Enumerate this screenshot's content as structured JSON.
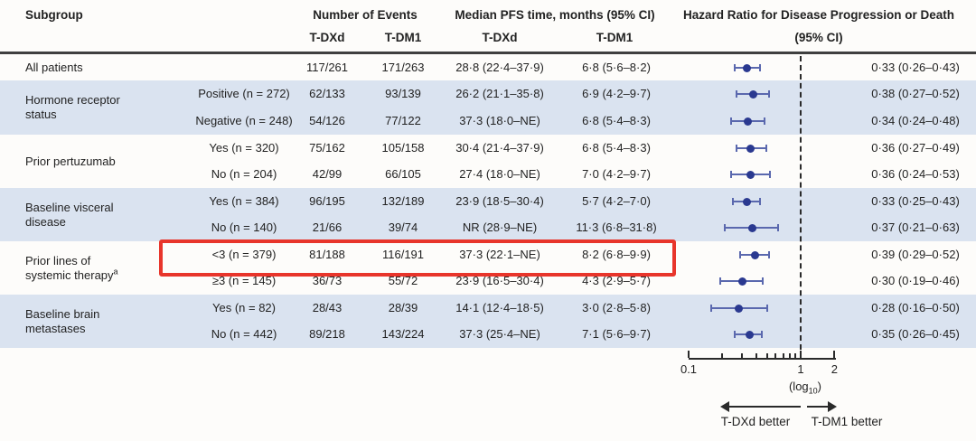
{
  "header": {
    "subgroup": "Subgroup",
    "events": "Number of Events",
    "pfs": "Median PFS time, months (95% CI)",
    "hr_line1": "Hazard Ratio for Disease Progression or Death",
    "hr_line2": "(95% CI)",
    "tdxd": "T-DXd",
    "tdm1": "T-DM1"
  },
  "colors": {
    "band_blue": "#dae3f0",
    "marker_dot": "#2a3990",
    "marker_line": "#5a68ae",
    "highlight_red": "#e8352b",
    "axis_black": "#2a2a2a"
  },
  "chart_data": {
    "type": "forest",
    "title": "Hazard Ratio for Disease Progression or Death (95% CI)",
    "axis": {
      "scale": "log10",
      "range": [
        0.1,
        2
      ],
      "reference_line": 1,
      "tick_labels": [
        {
          "value": 0.1,
          "label": "0.1"
        },
        {
          "value": 1,
          "label": "1"
        },
        {
          "value": 2,
          "label": "2"
        }
      ],
      "minor_ticks": [
        0.2,
        0.3,
        0.4,
        0.5,
        0.6,
        0.7,
        0.8,
        0.9
      ]
    },
    "groups": [
      {
        "line1": "All patients",
        "line2": "",
        "sup": ""
      },
      {
        "line1": "Hormone receptor",
        "line2": "status",
        "sup": ""
      },
      {
        "line1": "Prior pertuzumab",
        "line2": "",
        "sup": ""
      },
      {
        "line1": "Baseline visceral",
        "line2": "disease",
        "sup": ""
      },
      {
        "line1": "Prior lines of",
        "line2": "systemic therapy",
        "sup": "a"
      },
      {
        "line1": "Baseline brain",
        "line2": "metastases",
        "sup": ""
      }
    ],
    "rows": [
      {
        "sub": "",
        "events_tdxd": "117/261",
        "events_tdm1": "171/263",
        "pfs_tdxd": "28·8 (22·4–37·9)",
        "pfs_tdm1": "6·8 (5·6–8·2)",
        "hr_text": "0·33 (0·26–0·43)",
        "hr": 0.33,
        "lo": 0.26,
        "hi": 0.43
      },
      {
        "sub": "Positive (n = 272)",
        "events_tdxd": "62/133",
        "events_tdm1": "93/139",
        "pfs_tdxd": "26·2 (21·1–35·8)",
        "pfs_tdm1": "6·9 (4·2–9·7)",
        "hr_text": "0·38 (0·27–0·52)",
        "hr": 0.38,
        "lo": 0.27,
        "hi": 0.52
      },
      {
        "sub": "Negative (n = 248)",
        "events_tdxd": "54/126",
        "events_tdm1": "77/122",
        "pfs_tdxd": "37·3 (18·0–NE)",
        "pfs_tdm1": "6·8 (5·4–8·3)",
        "hr_text": "0·34 (0·24–0·48)",
        "hr": 0.34,
        "lo": 0.24,
        "hi": 0.48
      },
      {
        "sub": "Yes (n = 320)",
        "events_tdxd": "75/162",
        "events_tdm1": "105/158",
        "pfs_tdxd": "30·4 (21·4–37·9)",
        "pfs_tdm1": "6·8 (5·4–8·3)",
        "hr_text": "0·36 (0·27–0·49)",
        "hr": 0.36,
        "lo": 0.27,
        "hi": 0.49
      },
      {
        "sub": "No (n = 204)",
        "events_tdxd": "42/99",
        "events_tdm1": "66/105",
        "pfs_tdxd": "27·4 (18·0–NE)",
        "pfs_tdm1": "7·0 (4·2–9·7)",
        "hr_text": "0·36 (0·24–0·53)",
        "hr": 0.36,
        "lo": 0.24,
        "hi": 0.53
      },
      {
        "sub": "Yes (n = 384)",
        "events_tdxd": "96/195",
        "events_tdm1": "132/189",
        "pfs_tdxd": "23·9 (18·5–30·4)",
        "pfs_tdm1": "5·7 (4·2–7·0)",
        "hr_text": "0·33 (0·25–0·43)",
        "hr": 0.33,
        "lo": 0.25,
        "hi": 0.43
      },
      {
        "sub": "No (n = 140)",
        "events_tdxd": "21/66",
        "events_tdm1": "39/74",
        "pfs_tdxd": "NR (28·9–NE)",
        "pfs_tdm1": "11·3 (6·8–31·8)",
        "hr_text": "0·37 (0·21–0·63)",
        "hr": 0.37,
        "lo": 0.21,
        "hi": 0.63
      },
      {
        "sub": "<3 (n = 379)",
        "events_tdxd": "81/188",
        "events_tdm1": "116/191",
        "pfs_tdxd": "37·3 (22·1–NE)",
        "pfs_tdm1": "8·2 (6·8–9·9)",
        "hr_text": "0·39 (0·29–0·52)",
        "hr": 0.39,
        "lo": 0.29,
        "hi": 0.52,
        "highlighted": true
      },
      {
        "sub": "≥3 (n = 145)",
        "events_tdxd": "36/73",
        "events_tdm1": "55/72",
        "pfs_tdxd": "23·9 (16·5–30·4)",
        "pfs_tdm1": "4·3 (2·9–5·7)",
        "hr_text": "0·30 (0·19–0·46)",
        "hr": 0.3,
        "lo": 0.19,
        "hi": 0.46
      },
      {
        "sub": "Yes (n = 82)",
        "events_tdxd": "28/43",
        "events_tdm1": "28/39",
        "pfs_tdxd": "14·1 (12·4–18·5)",
        "pfs_tdm1": "3·0 (2·8–5·8)",
        "hr_text": "0·28 (0·16–0·50)",
        "hr": 0.28,
        "lo": 0.16,
        "hi": 0.5
      },
      {
        "sub": "No (n = 442)",
        "events_tdxd": "89/218",
        "events_tdm1": "143/224",
        "pfs_tdxd": "37·3 (25·4–NE)",
        "pfs_tdm1": "7·1 (5·6–9·7)",
        "hr_text": "0·35 (0·26–0·45)",
        "hr": 0.35,
        "lo": 0.26,
        "hi": 0.45
      }
    ],
    "footer": {
      "log_pre": "(log",
      "log_sub": "10",
      "log_post": ")",
      "left_arrow_label": "T-DXd better",
      "right_arrow_label": "T-DM1 better"
    }
  },
  "highlight": {
    "row_index": 7
  }
}
